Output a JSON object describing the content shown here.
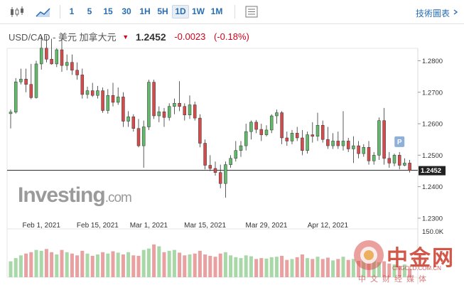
{
  "toolbar": {
    "timeframes": [
      "1",
      "5",
      "15",
      "30",
      "1H",
      "5H",
      "1D",
      "1W",
      "1M"
    ],
    "active": "1D",
    "tools_label": "技術圖表"
  },
  "header": {
    "symbol": "USD/CAD - 美元 加拿大元",
    "price": "1.2452",
    "change": "-0.0023",
    "change_pct": "(-0.18%)",
    "color_down": "#d0021b"
  },
  "watermark": {
    "main": "Investing",
    "suffix": ".com"
  },
  "logo": {
    "name": "中金网",
    "site": "CNGOLD.COM.CN",
    "sub": "中文财经媒体"
  },
  "chart_data": {
    "type": "candlestick",
    "x_tick_labels": [
      "Feb 1, 2021",
      "Feb 15, 2021",
      "Mar 1, 2021",
      "Mar 15, 2021",
      "Mar 29, 2021",
      "Apr 12, 2021"
    ],
    "y_ticks": [
      1.23,
      1.24,
      1.25,
      1.26,
      1.27,
      1.28
    ],
    "y_tick_labels": [
      "1.2300",
      "1.2400",
      "1.2500",
      "1.2600",
      "1.2700",
      "1.2800"
    ],
    "ylim": [
      1.2275,
      1.2835
    ],
    "current_price_label": "1.2452",
    "current_price": 1.2452,
    "volume_label": "150.0K",
    "marker_label": "P",
    "marker_index": 76,
    "up_color": "#63b96b",
    "down_color": "#d54b4b",
    "candles": [
      [
        1.2632,
        1.2645,
        1.2585,
        1.2637
      ],
      [
        1.2637,
        1.2745,
        1.2632,
        1.2733
      ],
      [
        1.2733,
        1.2775,
        1.2725,
        1.2742
      ],
      [
        1.2742,
        1.2775,
        1.27,
        1.2725
      ],
      [
        1.2725,
        1.279,
        1.2678,
        1.2683
      ],
      [
        1.2683,
        1.28,
        1.268,
        1.279
      ],
      [
        1.279,
        1.288,
        1.2772,
        1.284
      ],
      [
        1.284,
        1.288,
        1.2795,
        1.2805
      ],
      [
        1.2805,
        1.287,
        1.2788,
        1.279
      ],
      [
        1.279,
        1.284,
        1.278,
        1.2835
      ],
      [
        1.2835,
        1.287,
        1.2765,
        1.2785
      ],
      [
        1.2785,
        1.282,
        1.277,
        1.2795
      ],
      [
        1.2795,
        1.282,
        1.2755,
        1.277
      ],
      [
        1.277,
        1.2795,
        1.274,
        1.2755
      ],
      [
        1.2755,
        1.2775,
        1.268,
        1.2693
      ],
      [
        1.2693,
        1.2718,
        1.268,
        1.2705
      ],
      [
        1.2705,
        1.273,
        1.2685,
        1.269
      ],
      [
        1.269,
        1.272,
        1.268,
        1.2705
      ],
      [
        1.2705,
        1.2715,
        1.2635,
        1.2642
      ],
      [
        1.2642,
        1.271,
        1.2632,
        1.269
      ],
      [
        1.269,
        1.273,
        1.2655,
        1.2668
      ],
      [
        1.2668,
        1.2715,
        1.266,
        1.2685
      ],
      [
        1.2685,
        1.27,
        1.259,
        1.2608
      ],
      [
        1.2608,
        1.264,
        1.259,
        1.2622
      ],
      [
        1.2622,
        1.263,
        1.2575,
        1.2585
      ],
      [
        1.2585,
        1.2615,
        1.2525,
        1.253
      ],
      [
        1.253,
        1.261,
        1.246,
        1.259
      ],
      [
        1.259,
        1.274,
        1.258,
        1.2732
      ],
      [
        1.2732,
        1.274,
        1.2615,
        1.2625
      ],
      [
        1.2625,
        1.2655,
        1.2605,
        1.2638
      ],
      [
        1.2638,
        1.265,
        1.259,
        1.262
      ],
      [
        1.262,
        1.2665,
        1.261,
        1.2655
      ],
      [
        1.2655,
        1.268,
        1.263,
        1.2665
      ],
      [
        1.2665,
        1.2735,
        1.264,
        1.2655
      ],
      [
        1.2655,
        1.2665,
        1.261,
        1.2628
      ],
      [
        1.2628,
        1.269,
        1.2615,
        1.266
      ],
      [
        1.266,
        1.267,
        1.261,
        1.2618
      ],
      [
        1.2618,
        1.263,
        1.2525,
        1.2538
      ],
      [
        1.2538,
        1.255,
        1.2455,
        1.2468
      ],
      [
        1.2468,
        1.25,
        1.245,
        1.2458
      ],
      [
        1.2458,
        1.248,
        1.2435,
        1.2445
      ],
      [
        1.2445,
        1.247,
        1.2395,
        1.241
      ],
      [
        1.241,
        1.248,
        1.2365,
        1.247
      ],
      [
        1.247,
        1.25,
        1.246,
        1.249
      ],
      [
        1.249,
        1.2545,
        1.248,
        1.2515
      ],
      [
        1.2515,
        1.2545,
        1.2495,
        1.253
      ],
      [
        1.253,
        1.26,
        1.2515,
        1.2575
      ],
      [
        1.2575,
        1.261,
        1.255,
        1.2605
      ],
      [
        1.2605,
        1.2612,
        1.257,
        1.2582
      ],
      [
        1.2582,
        1.26,
        1.2545,
        1.2565
      ],
      [
        1.2565,
        1.2595,
        1.256,
        1.258
      ],
      [
        1.258,
        1.263,
        1.257,
        1.2625
      ],
      [
        1.2625,
        1.2645,
        1.26,
        1.2635
      ],
      [
        1.2635,
        1.264,
        1.2535,
        1.2555
      ],
      [
        1.2555,
        1.2575,
        1.253,
        1.2545
      ],
      [
        1.2545,
        1.258,
        1.2535,
        1.257
      ],
      [
        1.257,
        1.259,
        1.2545,
        1.2555
      ],
      [
        1.2555,
        1.258,
        1.25,
        1.2515
      ],
      [
        1.2515,
        1.2575,
        1.2505,
        1.2565
      ],
      [
        1.2565,
        1.2605,
        1.254,
        1.256
      ],
      [
        1.256,
        1.2635,
        1.2545,
        1.2595
      ],
      [
        1.2595,
        1.261,
        1.254,
        1.255
      ],
      [
        1.255,
        1.259,
        1.252,
        1.253
      ],
      [
        1.253,
        1.257,
        1.252,
        1.2545
      ],
      [
        1.2545,
        1.2575,
        1.252,
        1.253
      ],
      [
        1.253,
        1.264,
        1.2515,
        1.2545
      ],
      [
        1.2545,
        1.2555,
        1.251,
        1.252
      ],
      [
        1.252,
        1.256,
        1.2475,
        1.253
      ],
      [
        1.253,
        1.2545,
        1.249,
        1.2505
      ],
      [
        1.2505,
        1.2535,
        1.2495,
        1.2525
      ],
      [
        1.2525,
        1.2545,
        1.247,
        1.2482
      ],
      [
        1.2482,
        1.251,
        1.247,
        1.25
      ],
      [
        1.25,
        1.262,
        1.2485,
        1.261
      ],
      [
        1.261,
        1.265,
        1.247,
        1.249
      ],
      [
        1.249,
        1.251,
        1.246,
        1.2475
      ],
      [
        1.2475,
        1.2505,
        1.2465,
        1.25
      ],
      [
        1.25,
        1.251,
        1.2455,
        1.2468
      ],
      [
        1.2468,
        1.249,
        1.2465,
        1.2475
      ],
      [
        1.2475,
        1.2485,
        1.2445,
        1.2452
      ]
    ],
    "volumes": [
      0.35,
      0.42,
      0.48,
      0.52,
      0.55,
      0.6,
      0.58,
      0.62,
      0.55,
      0.5,
      0.6,
      0.55,
      0.52,
      0.48,
      0.58,
      0.52,
      0.47,
      0.5,
      0.55,
      0.52,
      0.57,
      0.54,
      0.5,
      0.55,
      0.48,
      0.47,
      0.6,
      0.63,
      0.72,
      0.68,
      0.55,
      0.58,
      0.6,
      0.54,
      0.48,
      0.5,
      0.52,
      0.58,
      0.5,
      0.47,
      0.45,
      0.52,
      0.55,
      0.48,
      0.44,
      0.42,
      0.48,
      0.46,
      0.4,
      0.42,
      0.41,
      0.44,
      0.45,
      0.47,
      0.38,
      0.4,
      0.44,
      0.5,
      0.42,
      0.4,
      0.45,
      0.4,
      0.43,
      0.37,
      0.4,
      0.45,
      0.38,
      0.4,
      0.36,
      0.38,
      0.35,
      0.4,
      0.33,
      0.35,
      0.3,
      0.28,
      0.25,
      0.28,
      0.18
    ]
  }
}
